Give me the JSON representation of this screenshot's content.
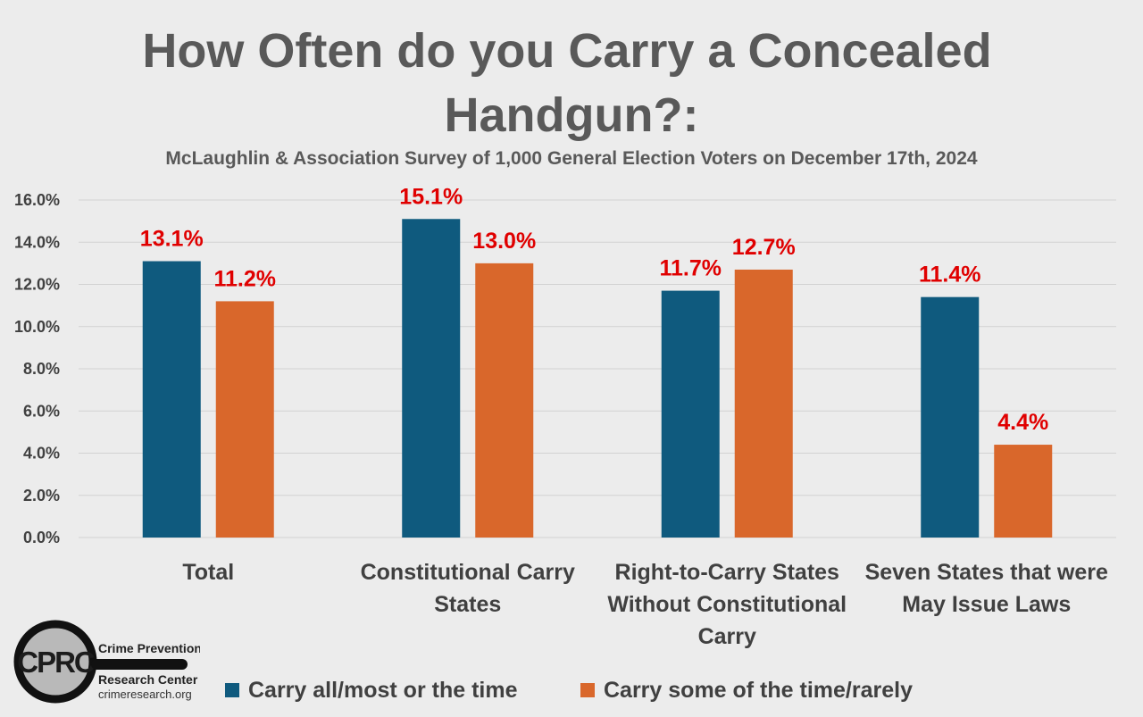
{
  "title_line_1": "How Often do you Carry a Concealed",
  "title_line_2": "Handgun?:",
  "subtitle": "McLaughlin & Association Survey of 1,000 General Election Voters on December 17th, 2024",
  "colors": {
    "series_1": "#0f5a7e",
    "series_2": "#d9672b",
    "data_label": "#e00000",
    "axis_text": "#404040",
    "grid": "#d2d2d2"
  },
  "logo": {
    "initials": "CPRC",
    "line_1": "Crime Prevention",
    "line_2": "Research Center",
    "url": "crimeresearch.org"
  },
  "chart_data": {
    "type": "bar",
    "title": "How Often do you Carry a Concealed Handgun?:",
    "subtitle": "McLaughlin & Association Survey of 1,000 General Election Voters on December 17th, 2024",
    "categories": [
      [
        "Total"
      ],
      [
        "Constitutional Carry",
        "States"
      ],
      [
        "Right-to-Carry States",
        "Without Constitutional",
        "Carry"
      ],
      [
        "Seven States that were",
        "May Issue Laws"
      ]
    ],
    "series": [
      {
        "name": "Carry all/most or the time",
        "values": [
          13.1,
          15.1,
          11.7,
          11.4
        ],
        "labels": [
          "13.1%",
          "15.1%",
          "11.7%",
          "11.4%"
        ]
      },
      {
        "name": "Carry some of the time/rarely",
        "values": [
          11.2,
          13.0,
          12.7,
          4.4
        ],
        "labels": [
          "11.2%",
          "13.0%",
          "12.7%",
          "4.4%"
        ]
      }
    ],
    "ylim": [
      0,
      16
    ],
    "yticks": [
      "0.0%",
      "2.0%",
      "4.0%",
      "6.0%",
      "8.0%",
      "10.0%",
      "12.0%",
      "14.0%",
      "16.0%"
    ],
    "grid": true,
    "legend": "bottom"
  }
}
